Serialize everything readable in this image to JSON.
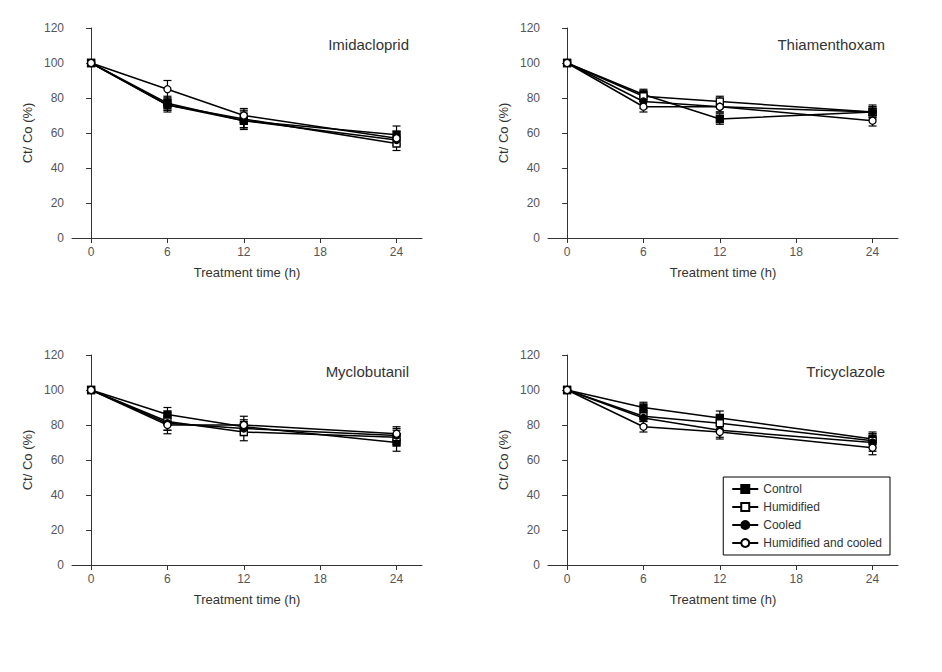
{
  "chart_data": [
    {
      "type": "line",
      "title": "Imidacloprid",
      "xlabel": "Treatment time (h)",
      "ylabel": "Ct/ Co (%)",
      "x": [
        0,
        6,
        12,
        24
      ],
      "xlim": [
        -1.5,
        26
      ],
      "xticks": [
        0,
        6,
        12,
        18,
        24
      ],
      "ylim": [
        0,
        120
      ],
      "yticks": [
        0,
        20,
        40,
        60,
        80,
        100,
        120
      ],
      "grid": false,
      "series": [
        {
          "name": "Control",
          "color": "#000000",
          "marker": "square",
          "values": [
            100,
            77,
            67,
            59
          ],
          "yerr": [
            0.5,
            4,
            4,
            5
          ]
        },
        {
          "name": "Humidified",
          "color": "#000000",
          "marker": "open-square",
          "values": [
            100,
            76,
            68,
            54
          ],
          "yerr": [
            0.5,
            3,
            5,
            4
          ]
        },
        {
          "name": "Cooled",
          "color": "#000000",
          "marker": "circle",
          "values": [
            100,
            76,
            67,
            56
          ],
          "yerr": [
            0.5,
            4,
            5,
            3
          ]
        },
        {
          "name": "Humidified and cooled",
          "color": "#000000",
          "marker": "open-circle",
          "values": [
            100,
            85,
            70,
            57
          ],
          "yerr": [
            0.5,
            5,
            4,
            4
          ]
        }
      ]
    },
    {
      "type": "line",
      "title": "Thiamenthoxam",
      "xlabel": "Treatment time (h)",
      "ylabel": "Ct/ Co (%)",
      "x": [
        0,
        6,
        12,
        24
      ],
      "xlim": [
        -1.5,
        26
      ],
      "xticks": [
        0,
        6,
        12,
        18,
        24
      ],
      "ylim": [
        0,
        120
      ],
      "yticks": [
        0,
        20,
        40,
        60,
        80,
        100,
        120
      ],
      "grid": false,
      "series": [
        {
          "name": "Control",
          "color": "#000000",
          "marker": "square",
          "values": [
            100,
            82,
            68,
            72
          ],
          "yerr": [
            0.5,
            3,
            3,
            4
          ]
        },
        {
          "name": "Humidified",
          "color": "#000000",
          "marker": "open-square",
          "values": [
            100,
            81,
            78,
            72
          ],
          "yerr": [
            0.5,
            3,
            3,
            3
          ]
        },
        {
          "name": "Cooled",
          "color": "#000000",
          "marker": "circle",
          "values": [
            100,
            78,
            75,
            72
          ],
          "yerr": [
            0.5,
            4,
            3,
            3
          ]
        },
        {
          "name": "Humidified and cooled",
          "color": "#000000",
          "marker": "open-circle",
          "values": [
            100,
            75,
            75,
            67
          ],
          "yerr": [
            0.5,
            3,
            3,
            3
          ]
        }
      ]
    },
    {
      "type": "line",
      "title": "Myclobutanil",
      "xlabel": "Treatment time (h)",
      "ylabel": "Ct/ Co (%)",
      "x": [
        0,
        6,
        12,
        24
      ],
      "xlim": [
        -1.5,
        26
      ],
      "xticks": [
        0,
        6,
        12,
        18,
        24
      ],
      "ylim": [
        0,
        120
      ],
      "yticks": [
        0,
        20,
        40,
        60,
        80,
        100,
        120
      ],
      "grid": false,
      "series": [
        {
          "name": "Control",
          "color": "#000000",
          "marker": "square",
          "values": [
            100,
            86,
            79,
            70
          ],
          "yerr": [
            0.5,
            4,
            4,
            5
          ]
        },
        {
          "name": "Humidified",
          "color": "#000000",
          "marker": "open-square",
          "values": [
            100,
            82,
            76,
            73
          ],
          "yerr": [
            0.5,
            5,
            5,
            4
          ]
        },
        {
          "name": "Cooled",
          "color": "#000000",
          "marker": "circle",
          "values": [
            100,
            81,
            78,
            74
          ],
          "yerr": [
            0.5,
            4,
            4,
            4
          ]
        },
        {
          "name": "Humidified and cooled",
          "color": "#000000",
          "marker": "open-circle",
          "values": [
            100,
            80,
            80,
            75
          ],
          "yerr": [
            0.5,
            5,
            5,
            4
          ]
        }
      ]
    },
    {
      "type": "line",
      "title": "Tricyclazole",
      "xlabel": "Treatment time (h)",
      "ylabel": "Ct/ Co (%)",
      "x": [
        0,
        6,
        12,
        24
      ],
      "xlim": [
        -1.5,
        26
      ],
      "xticks": [
        0,
        6,
        12,
        18,
        24
      ],
      "ylim": [
        0,
        120
      ],
      "yticks": [
        0,
        20,
        40,
        60,
        80,
        100,
        120
      ],
      "grid": false,
      "legend": "lower right",
      "series": [
        {
          "name": "Control",
          "color": "#000000",
          "marker": "square",
          "values": [
            100,
            90,
            84,
            72
          ],
          "yerr": [
            0.5,
            3,
            4,
            4
          ]
        },
        {
          "name": "Humidified",
          "color": "#000000",
          "marker": "open-square",
          "values": [
            100,
            85,
            81,
            71
          ],
          "yerr": [
            0.5,
            3,
            4,
            4
          ]
        },
        {
          "name": "Cooled",
          "color": "#000000",
          "marker": "circle",
          "values": [
            100,
            84,
            77,
            70
          ],
          "yerr": [
            0.5,
            4,
            4,
            5
          ]
        },
        {
          "name": "Humidified and cooled",
          "color": "#000000",
          "marker": "open-circle",
          "values": [
            100,
            79,
            76,
            67
          ],
          "yerr": [
            0.5,
            3,
            4,
            4
          ]
        }
      ]
    }
  ]
}
